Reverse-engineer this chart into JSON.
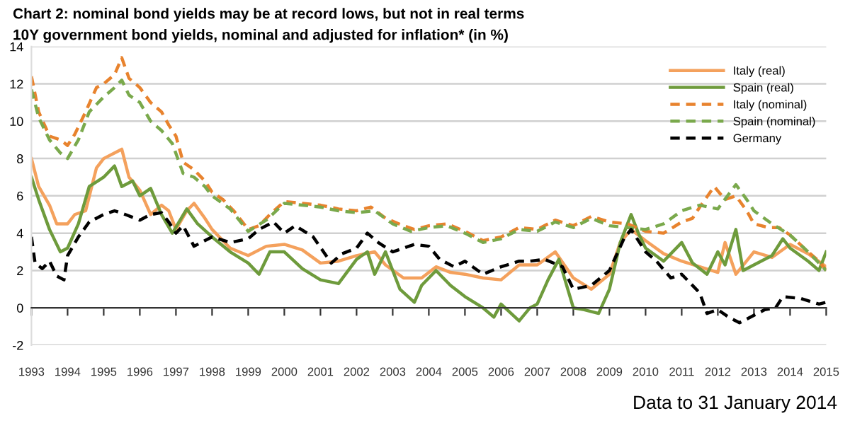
{
  "chart_data": {
    "type": "line",
    "title": "Chart 2: nominal bond yields may be at record lows, but not in real terms",
    "subtitle": "10Y government bond yields, nominal and adjusted for inflation* (in %)",
    "annotations": [
      "Data to 31 January 2014"
    ],
    "xlim": [
      1993,
      2015
    ],
    "xticks": [
      {
        "value": 1993,
        "label": "1993"
      },
      {
        "value": 1994,
        "label": "1994"
      },
      {
        "value": 1995,
        "label": "1995"
      },
      {
        "value": 1996,
        "label": "1996"
      },
      {
        "value": 1997,
        "label": "1997"
      },
      {
        "value": 1998,
        "label": "1998"
      },
      {
        "value": 1999,
        "label": "1999"
      },
      {
        "value": 2000,
        "label": "2000"
      },
      {
        "value": 2001,
        "label": "2001"
      },
      {
        "value": 2002,
        "label": "2002"
      },
      {
        "value": 2003,
        "label": "2003"
      },
      {
        "value": 2004,
        "label": "2004"
      },
      {
        "value": 2005,
        "label": "2005"
      },
      {
        "value": 2006,
        "label": "2006"
      },
      {
        "value": 2007,
        "label": "2007"
      },
      {
        "value": 2008,
        "label": "2008"
      },
      {
        "value": 2009,
        "label": "2009"
      },
      {
        "value": 2010,
        "label": "2010"
      },
      {
        "value": 2011,
        "label": "2011"
      },
      {
        "value": 2012,
        "label": "2012"
      },
      {
        "value": 2013,
        "label": "2013"
      },
      {
        "value": 2014,
        "label": "2014"
      },
      {
        "value": 2015,
        "label": "2015"
      }
    ],
    "ylim": [
      -2,
      14
    ],
    "yticks": [
      -2,
      0,
      2,
      4,
      6,
      8,
      10,
      12,
      14
    ],
    "grid": "y",
    "legend": "top right",
    "marker": "none",
    "series": [
      {
        "name": "Italy (real)",
        "color": "#f4a15d",
        "line_style": "solid",
        "x": [
          1993.0,
          1993.2,
          1993.5,
          1993.7,
          1994.0,
          1994.2,
          1994.5,
          1994.8,
          1995.0,
          1995.3,
          1995.5,
          1995.7,
          1996.0,
          1996.3,
          1996.6,
          1996.8,
          1997.0,
          1997.3,
          1997.5,
          1997.8,
          1998.0,
          1998.5,
          1999.0,
          1999.5,
          2000.0,
          2000.5,
          2001.0,
          2001.5,
          2002.0,
          2002.5,
          2002.8,
          2003.3,
          2003.8,
          2004.2,
          2004.6,
          2005.0,
          2005.5,
          2006.0,
          2006.5,
          2007.0,
          2007.5,
          2008.0,
          2008.5,
          2009.0,
          2009.3,
          2009.6,
          2010.0,
          2010.5,
          2011.0,
          2011.5,
          2012.0,
          2012.2,
          2012.5,
          2013.0,
          2013.5,
          2014.0,
          2014.5,
          2015.0
        ],
        "values": [
          8.0,
          6.5,
          5.5,
          4.5,
          4.5,
          5.0,
          5.2,
          7.5,
          8.0,
          8.3,
          8.5,
          7.0,
          6.3,
          5.0,
          5.5,
          5.2,
          4.2,
          5.2,
          5.6,
          4.8,
          4.2,
          3.2,
          2.8,
          3.3,
          3.4,
          3.1,
          2.4,
          2.5,
          2.8,
          3.0,
          2.3,
          1.6,
          1.6,
          2.2,
          1.9,
          1.8,
          1.6,
          1.5,
          2.3,
          2.3,
          3.0,
          1.6,
          1.0,
          1.8,
          3.5,
          4.2,
          3.6,
          2.9,
          2.5,
          2.2,
          1.9,
          3.5,
          1.8,
          3.0,
          2.7,
          3.4,
          2.9,
          2.2
        ]
      },
      {
        "name": "Spain (real)",
        "color": "#6e9b3c",
        "line_style": "solid",
        "x": [
          1993.0,
          1993.2,
          1993.5,
          1993.8,
          1994.0,
          1994.3,
          1994.6,
          1995.0,
          1995.3,
          1995.5,
          1995.8,
          1996.0,
          1996.3,
          1996.6,
          1996.9,
          1997.3,
          1997.6,
          1998.0,
          1998.5,
          1999.0,
          1999.3,
          1999.6,
          2000.0,
          2000.5,
          2001.0,
          2001.5,
          2002.0,
          2002.3,
          2002.5,
          2002.8,
          2003.2,
          2003.6,
          2003.8,
          2004.2,
          2004.6,
          2005.0,
          2005.5,
          2005.8,
          2006.0,
          2006.5,
          2006.8,
          2007.0,
          2007.3,
          2007.6,
          2008.0,
          2008.3,
          2008.7,
          2009.0,
          2009.3,
          2009.6,
          2009.8,
          2010.0,
          2010.5,
          2011.0,
          2011.3,
          2011.7,
          2012.0,
          2012.2,
          2012.5,
          2012.7,
          2013.0,
          2013.5,
          2013.8,
          2014.0,
          2014.5,
          2014.8,
          2015.0
        ],
        "values": [
          7.0,
          5.8,
          4.2,
          3.0,
          3.2,
          4.5,
          6.5,
          7.0,
          7.6,
          6.5,
          6.8,
          6.0,
          6.4,
          5.0,
          4.0,
          5.3,
          4.5,
          3.8,
          3.0,
          2.4,
          1.8,
          3.0,
          3.0,
          2.1,
          1.5,
          1.3,
          2.6,
          3.0,
          1.8,
          3.0,
          1.0,
          0.3,
          1.2,
          2.0,
          1.2,
          0.6,
          0.0,
          -0.5,
          0.2,
          -0.7,
          0.0,
          0.2,
          1.5,
          2.6,
          0.0,
          -0.1,
          -0.3,
          1.0,
          3.5,
          5.0,
          4.0,
          3.2,
          2.5,
          3.5,
          2.4,
          1.8,
          3.0,
          2.3,
          4.2,
          2.0,
          2.3,
          2.8,
          3.7,
          3.2,
          2.5,
          2.0,
          3.0
        ]
      },
      {
        "name": "Italy (nominal)",
        "color": "#e8832e",
        "line_style": "dashed",
        "x": [
          1993.0,
          1993.2,
          1993.5,
          1993.8,
          1994.0,
          1994.2,
          1994.5,
          1994.8,
          1995.0,
          1995.3,
          1995.5,
          1995.7,
          1996.0,
          1996.3,
          1996.6,
          1996.8,
          1997.0,
          1997.2,
          1997.5,
          1997.8,
          1998.0,
          1998.3,
          1998.6,
          1999.0,
          1999.3,
          1999.6,
          2000.0,
          2000.5,
          2001.0,
          2001.5,
          2002.0,
          2002.4,
          2002.8,
          2003.3,
          2003.6,
          2004.0,
          2004.5,
          2005.0,
          2005.5,
          2006.0,
          2006.5,
          2007.0,
          2007.5,
          2008.0,
          2008.5,
          2009.0,
          2009.5,
          2010.0,
          2010.5,
          2011.0,
          2011.3,
          2011.5,
          2011.9,
          2012.2,
          2012.5,
          2012.8,
          2013.0,
          2013.4,
          2013.7,
          2014.0,
          2014.5,
          2014.8,
          2015.0
        ],
        "values": [
          12.4,
          10.5,
          9.2,
          9.0,
          8.7,
          9.3,
          10.5,
          11.8,
          12.0,
          12.5,
          13.4,
          12.3,
          11.8,
          11.0,
          10.5,
          9.8,
          9.2,
          7.8,
          7.4,
          6.8,
          6.2,
          5.8,
          5.2,
          4.2,
          4.4,
          5.0,
          5.7,
          5.6,
          5.5,
          5.3,
          5.2,
          5.4,
          4.8,
          4.4,
          4.2,
          4.4,
          4.5,
          4.1,
          3.6,
          3.8,
          4.3,
          4.2,
          4.7,
          4.4,
          4.9,
          4.6,
          4.5,
          4.1,
          4.0,
          4.6,
          4.8,
          5.4,
          6.5,
          5.8,
          6.0,
          5.2,
          4.5,
          4.3,
          4.3,
          3.9,
          3.0,
          2.5,
          2.0
        ]
      },
      {
        "name": "Spain (nominal)",
        "color": "#7aa94c",
        "line_style": "dashed",
        "x": [
          1993.0,
          1993.2,
          1993.5,
          1993.8,
          1994.0,
          1994.3,
          1994.6,
          1995.0,
          1995.3,
          1995.5,
          1995.7,
          1996.0,
          1996.3,
          1996.6,
          1996.9,
          1997.2,
          1997.5,
          1997.8,
          1998.0,
          1998.5,
          1999.0,
          1999.5,
          2000.0,
          2000.5,
          2001.0,
          2001.5,
          2002.0,
          2002.5,
          2003.0,
          2003.5,
          2004.0,
          2004.5,
          2005.0,
          2005.5,
          2006.0,
          2006.5,
          2007.0,
          2007.5,
          2008.0,
          2008.5,
          2009.0,
          2009.5,
          2010.0,
          2010.5,
          2011.0,
          2011.5,
          2012.0,
          2012.5,
          2012.8,
          2013.0,
          2013.5,
          2014.0,
          2014.5,
          2015.0
        ],
        "values": [
          11.7,
          10.2,
          9.0,
          8.3,
          8.0,
          9.0,
          10.5,
          11.3,
          11.8,
          12.2,
          11.4,
          11.0,
          10.0,
          9.5,
          8.8,
          7.2,
          7.0,
          6.5,
          6.0,
          5.3,
          4.1,
          4.7,
          5.6,
          5.5,
          5.4,
          5.2,
          5.1,
          5.2,
          4.5,
          4.1,
          4.3,
          4.4,
          4.0,
          3.5,
          3.7,
          4.2,
          4.1,
          4.6,
          4.3,
          4.8,
          4.4,
          4.3,
          4.2,
          4.5,
          5.2,
          5.5,
          5.3,
          6.6,
          5.8,
          5.2,
          4.5,
          3.9,
          3.0,
          2.0
        ]
      },
      {
        "name": "Germany",
        "color": "#000000",
        "line_style": "dashed",
        "x": [
          1993.0,
          1993.1,
          1993.3,
          1993.5,
          1993.7,
          1993.9,
          1994.0,
          1994.3,
          1994.6,
          1995.0,
          1995.3,
          1995.6,
          1996.0,
          1996.3,
          1996.6,
          1996.8,
          1997.0,
          1997.2,
          1997.5,
          1998.0,
          1998.5,
          1999.0,
          1999.3,
          1999.7,
          2000.0,
          2000.3,
          2000.8,
          2001.3,
          2001.6,
          2002.0,
          2002.3,
          2002.6,
          2003.0,
          2003.3,
          2003.6,
          2004.0,
          2004.3,
          2004.7,
          2005.0,
          2005.5,
          2006.0,
          2006.5,
          2006.8,
          2007.2,
          2007.7,
          2008.0,
          2008.5,
          2009.0,
          2009.4,
          2009.6,
          2010.0,
          2010.3,
          2010.7,
          2011.0,
          2011.5,
          2011.7,
          2012.0,
          2012.3,
          2012.6,
          2013.0,
          2013.3,
          2013.6,
          2013.8,
          2014.3,
          2014.8,
          2015.0
        ],
        "values": [
          3.8,
          2.4,
          2.1,
          2.5,
          1.7,
          1.5,
          2.8,
          3.8,
          4.6,
          5.0,
          5.2,
          5.0,
          4.7,
          5.0,
          5.1,
          4.6,
          4.0,
          4.4,
          3.3,
          3.8,
          3.5,
          3.7,
          4.2,
          4.6,
          4.0,
          4.4,
          3.8,
          2.4,
          2.9,
          3.2,
          4.0,
          3.5,
          3.0,
          3.2,
          3.4,
          3.3,
          2.6,
          2.2,
          2.5,
          1.8,
          2.2,
          2.5,
          2.5,
          2.6,
          2.2,
          1.0,
          1.2,
          2.0,
          3.7,
          4.2,
          3.0,
          2.5,
          1.6,
          1.8,
          0.8,
          -0.3,
          -0.1,
          -0.5,
          -0.8,
          -0.4,
          -0.1,
          0.0,
          0.6,
          0.5,
          0.2,
          0.3
        ]
      }
    ]
  }
}
